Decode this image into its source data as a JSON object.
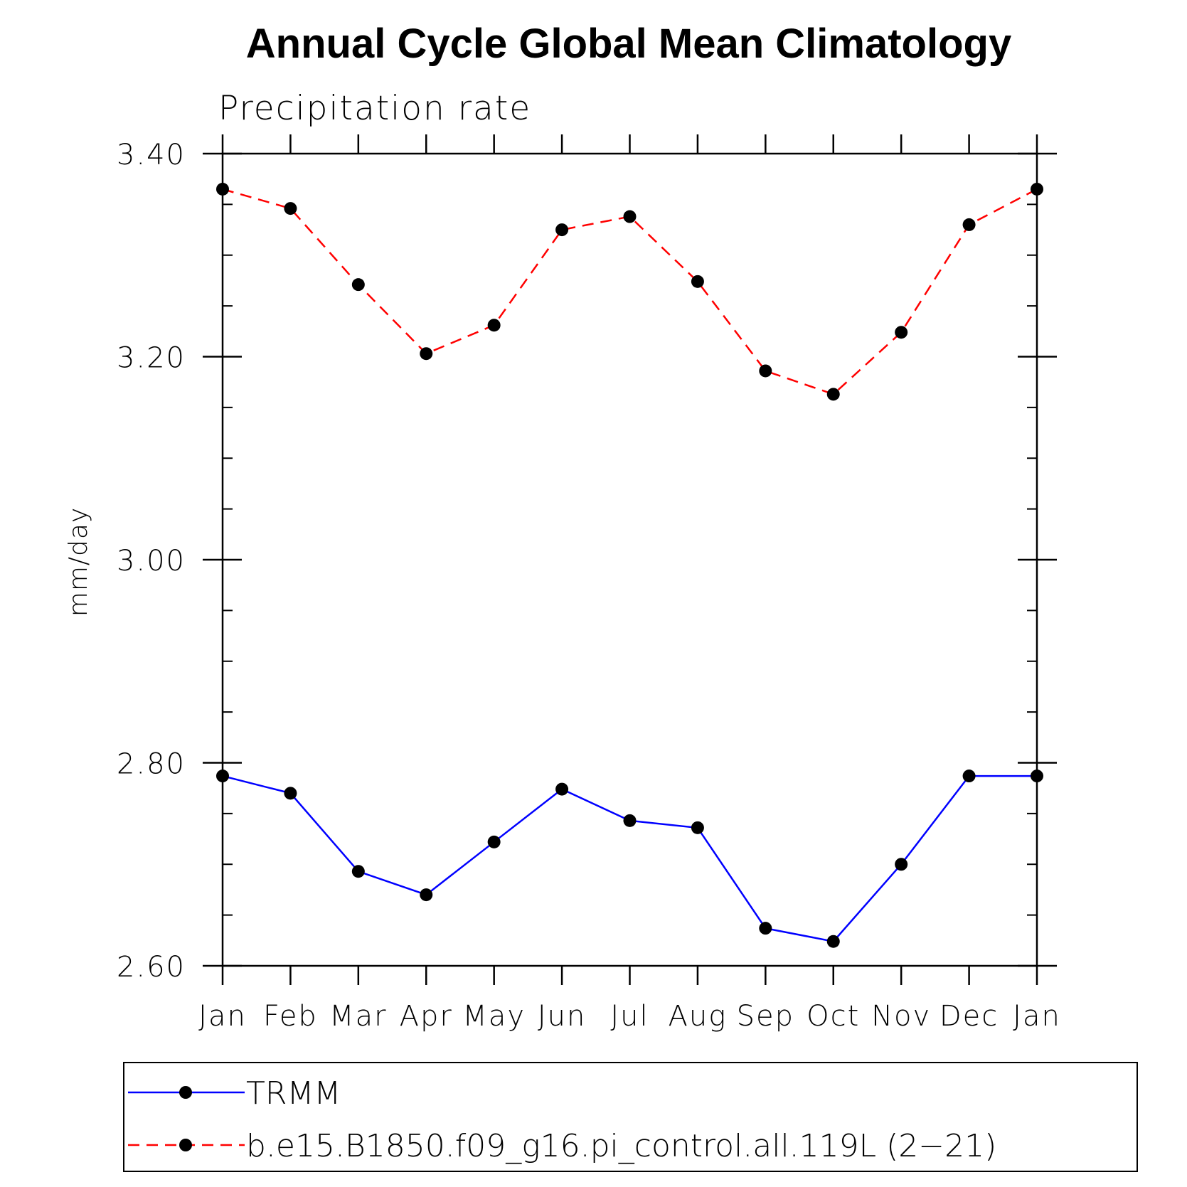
{
  "chart_data": {
    "type": "line",
    "title": "Annual Cycle Global Mean Climatology",
    "subtitle": "Precipitation rate",
    "xlabel": "",
    "ylabel": "mm/day",
    "categories": [
      "Jan",
      "Feb",
      "Mar",
      "Apr",
      "May",
      "Jun",
      "Jul",
      "Aug",
      "Sep",
      "Oct",
      "Nov",
      "Dec",
      "Jan"
    ],
    "ylim": [
      2.6,
      3.4
    ],
    "yticks": [
      "2.60",
      "2.80",
      "3.00",
      "3.20",
      "3.40"
    ],
    "grid": false,
    "legend_position": "bottom",
    "series": [
      {
        "name": "TRMM",
        "color": "#0000ff",
        "line_style": "solid",
        "marker": "filled-circle",
        "values": [
          2.787,
          2.77,
          2.693,
          2.67,
          2.722,
          2.774,
          2.743,
          2.736,
          2.637,
          2.624,
          2.7,
          2.787,
          2.787
        ]
      },
      {
        "name": "b.e15.B1850.f09_g16.pi_control.all.119L (2−21)",
        "color": "#ff0000",
        "line_style": "dashed",
        "marker": "filled-circle",
        "values": [
          3.365,
          3.346,
          3.271,
          3.203,
          3.231,
          3.325,
          3.338,
          3.274,
          3.186,
          3.163,
          3.224,
          3.33,
          3.365
        ]
      }
    ]
  }
}
